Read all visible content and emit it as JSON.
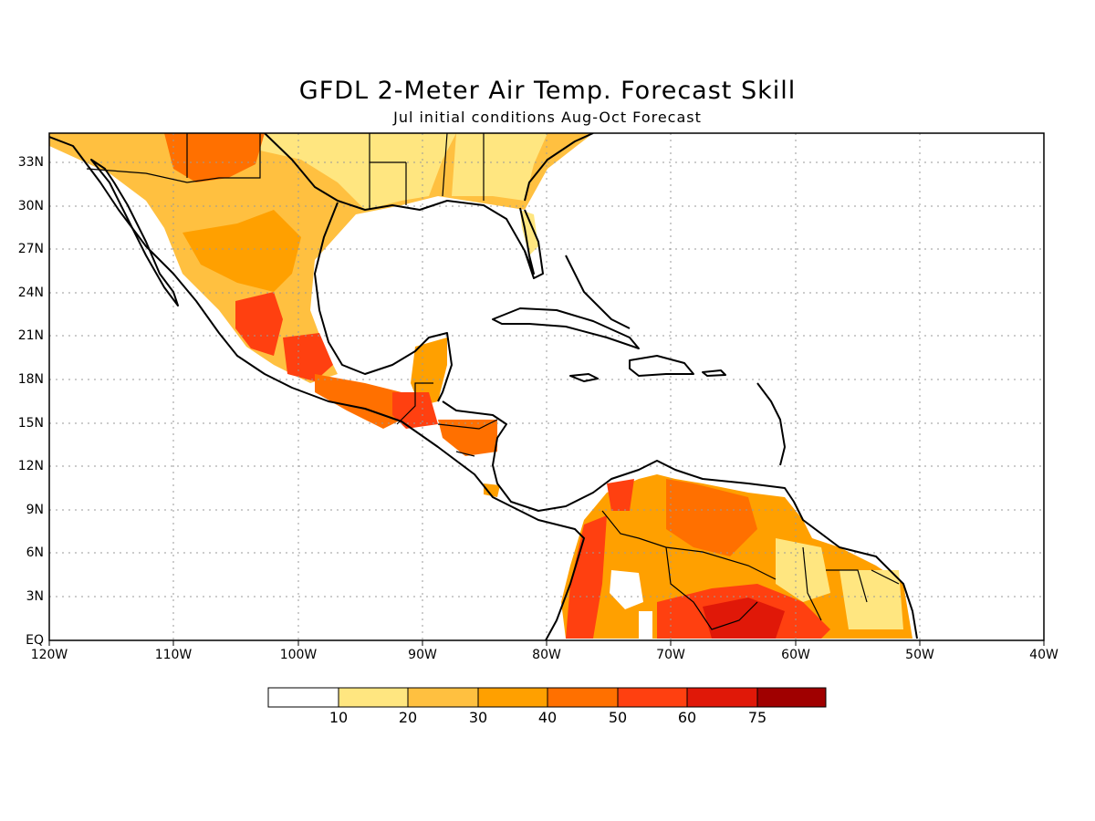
{
  "header": {
    "title": "GFDL 2-Meter Air Temp. Forecast Skill",
    "subtitle": "Jul initial conditions  Aug-Oct Forecast"
  },
  "map": {
    "extent": {
      "lon_min": -120,
      "lon_max": -40,
      "lat_min": 0,
      "lat_max": 35
    },
    "lat_labels": [
      "33N",
      "30N",
      "27N",
      "24N",
      "21N",
      "18N",
      "15N",
      "12N",
      "9N",
      "6N",
      "3N",
      "EQ"
    ],
    "lon_labels": [
      "120W",
      "110W",
      "100W",
      "90W",
      "80W",
      "70W",
      "60W",
      "50W",
      "40W"
    ],
    "grid": "dotted"
  },
  "colorbar": {
    "labels": [
      "10",
      "20",
      "30",
      "40",
      "50",
      "60",
      "75"
    ],
    "colors": [
      "#ffffff",
      "#ffe680",
      "#ffc040",
      "#ffa000",
      "#ff7000",
      "#ff4010",
      "#e01808",
      "#a00000"
    ]
  }
}
